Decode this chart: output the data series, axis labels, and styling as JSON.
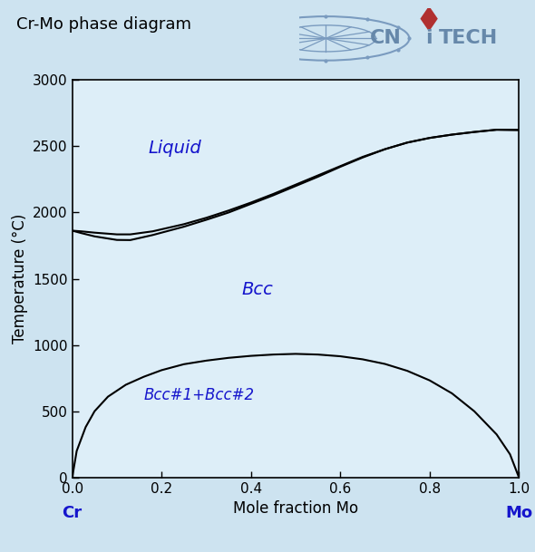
{
  "title": "Cr-Mo phase diagram",
  "xlabel": "Mole fraction Mo",
  "ylabel": "Temperature (°C)",
  "xlim": [
    0,
    1
  ],
  "ylim": [
    0,
    3000
  ],
  "background_color": "#cde3f0",
  "plot_bg_color": "#ddeef8",
  "label_Cr": "Cr",
  "label_Mo": "Mo",
  "label_Liquid": "Liquid",
  "label_Bcc": "Bcc",
  "label_BccTwo": "Bcc#1+Bcc#2",
  "label_color": "#1515cc",
  "line_color": "black",
  "liquidus_x": [
    0.0,
    0.02,
    0.05,
    0.1,
    0.13,
    0.18,
    0.25,
    0.3,
    0.35,
    0.4,
    0.45,
    0.5,
    0.55,
    0.6,
    0.65,
    0.7,
    0.75,
    0.8,
    0.85,
    0.9,
    0.95,
    1.0
  ],
  "liquidus_y": [
    1863,
    1858,
    1848,
    1835,
    1835,
    1858,
    1912,
    1960,
    2015,
    2075,
    2140,
    2210,
    2280,
    2350,
    2420,
    2478,
    2528,
    2563,
    2588,
    2608,
    2625,
    2623
  ],
  "solidus_x": [
    0.0,
    0.02,
    0.05,
    0.1,
    0.13,
    0.18,
    0.25,
    0.3,
    0.35,
    0.4,
    0.45,
    0.5,
    0.55,
    0.6,
    0.65,
    0.7,
    0.75,
    0.8,
    0.85,
    0.9,
    0.95,
    1.0
  ],
  "solidus_y": [
    1863,
    1845,
    1820,
    1793,
    1792,
    1830,
    1893,
    1945,
    2000,
    2065,
    2130,
    2200,
    2270,
    2345,
    2415,
    2478,
    2528,
    2563,
    2588,
    2608,
    2625,
    2623
  ],
  "miscibility_x": [
    0.0,
    0.01,
    0.03,
    0.05,
    0.08,
    0.12,
    0.16,
    0.2,
    0.25,
    0.3,
    0.35,
    0.4,
    0.45,
    0.5,
    0.55,
    0.6,
    0.65,
    0.7,
    0.75,
    0.8,
    0.85,
    0.9,
    0.95,
    0.98,
    1.0
  ],
  "miscibility_y": [
    0,
    200,
    380,
    500,
    610,
    700,
    760,
    810,
    855,
    882,
    903,
    918,
    928,
    933,
    928,
    915,
    892,
    857,
    805,
    733,
    635,
    500,
    325,
    175,
    0
  ],
  "yticks": [
    0,
    500,
    1000,
    1500,
    2000,
    2500,
    3000
  ],
  "xticks": [
    0.0,
    0.2,
    0.4,
    0.6,
    0.8,
    1.0
  ],
  "logo_color": "#7a9bbf",
  "logo_text_color": "#6688aa",
  "diamond_color": "#b03030"
}
